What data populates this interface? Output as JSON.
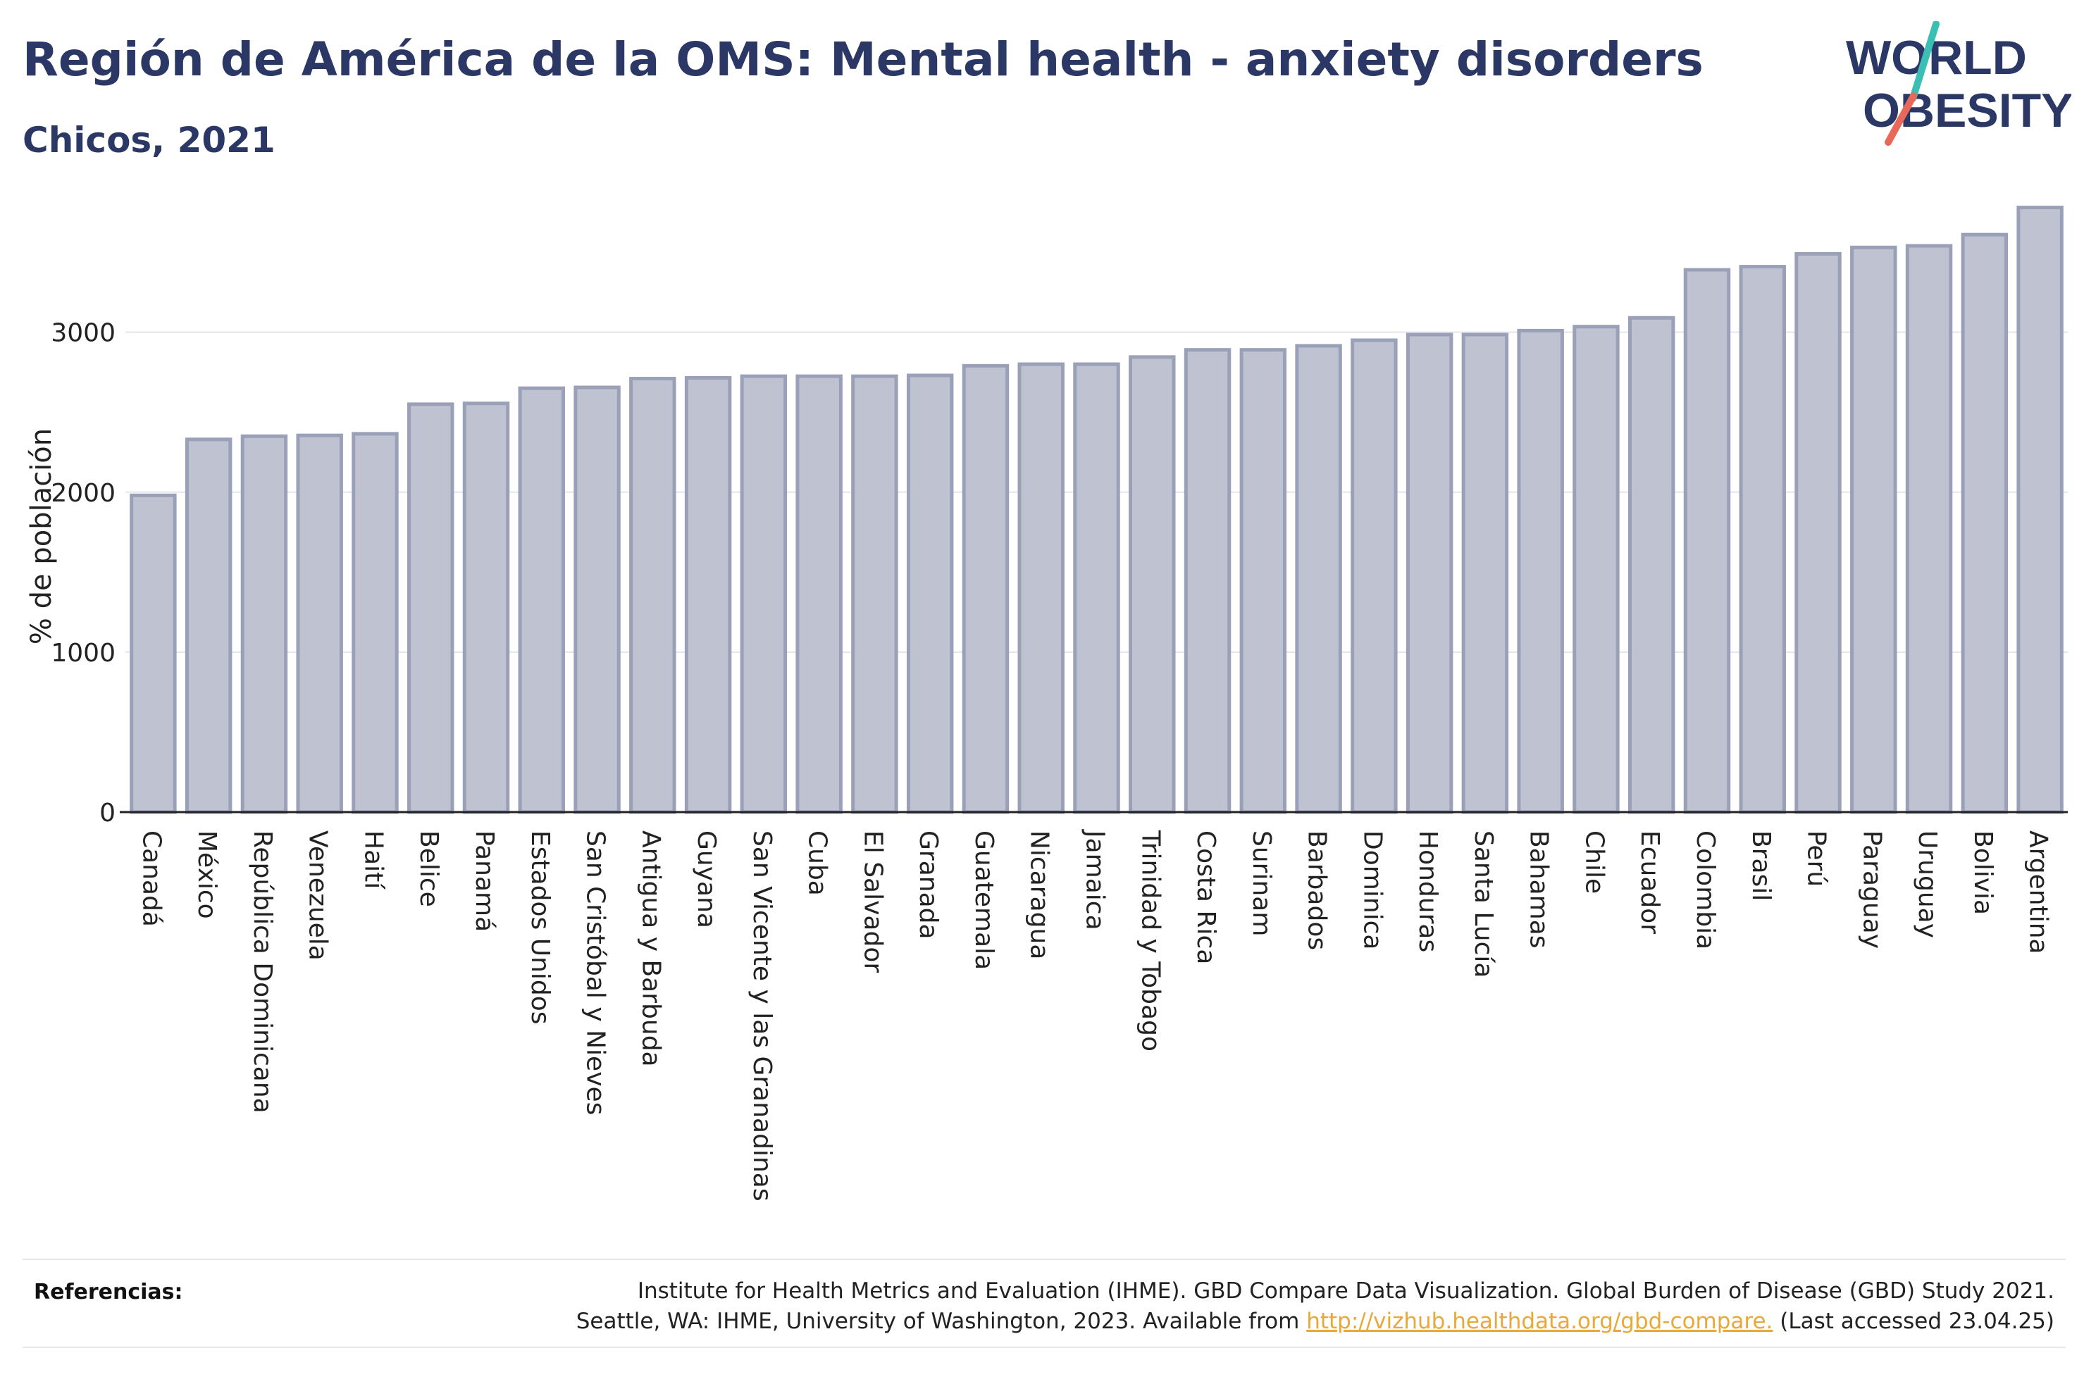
{
  "header": {
    "title": "Región de América de la OMS: Mental health - anxiety disorders",
    "subtitle": "Chicos, 2021"
  },
  "logo": {
    "line1": "WORLD",
    "line2": "OBESITY",
    "colors": {
      "text": "#2b3765",
      "slash_teal": "#3bbfb4",
      "slash_red": "#e8695a"
    }
  },
  "chart_data": {
    "type": "bar",
    "title": "Región de América de la OMS: Mental health - anxiety disorders",
    "subtitle": "Chicos, 2021",
    "xlabel": "",
    "ylabel": "% de población",
    "ylim": [
      0,
      3800
    ],
    "yticks": [
      0,
      1000,
      2000,
      3000
    ],
    "grid": true,
    "bar_fill": "#bfc3d1",
    "bar_stroke": "#9aa0b8",
    "categories": [
      "Canadá",
      "México",
      "República Dominicana",
      "Venezuela",
      "Haití",
      "Belice",
      "Panamá",
      "Estados Unidos",
      "San Cristóbal y Nieves",
      "Antigua y Barbuda",
      "Guyana",
      "San Vicente y las Granadinas",
      "Cuba",
      "El Salvador",
      "Granada",
      "Guatemala",
      "Nicaragua",
      "Jamaica",
      "Trinidad y Tobago",
      "Costa Rica",
      "Surinam",
      "Barbados",
      "Dominica",
      "Honduras",
      "Santa Lucía",
      "Bahamas",
      "Chile",
      "Ecuador",
      "Colombia",
      "Brasil",
      "Perú",
      "Paraguay",
      "Uruguay",
      "Bolivia",
      "Argentina"
    ],
    "values": [
      1980,
      2330,
      2350,
      2355,
      2365,
      2550,
      2555,
      2650,
      2655,
      2710,
      2715,
      2725,
      2725,
      2725,
      2730,
      2790,
      2800,
      2800,
      2845,
      2890,
      2890,
      2915,
      2950,
      2985,
      2985,
      3010,
      3035,
      3090,
      3390,
      3410,
      3490,
      3530,
      3540,
      3610,
      3780
    ]
  },
  "footer": {
    "ref_label": "Referencias:",
    "ref_line1": "Institute for Health Metrics and Evaluation (IHME). GBD Compare Data Visualization. Global Burden of Disease (GBD) Study 2021.",
    "ref_line2_pre": "Seattle, WA: IHME, University of Washington, 2023. Available from ",
    "ref_link": "http://vizhub.healthdata.org/gbd-compare.",
    "ref_line2_post": " (Last accessed 23.04.25)"
  }
}
